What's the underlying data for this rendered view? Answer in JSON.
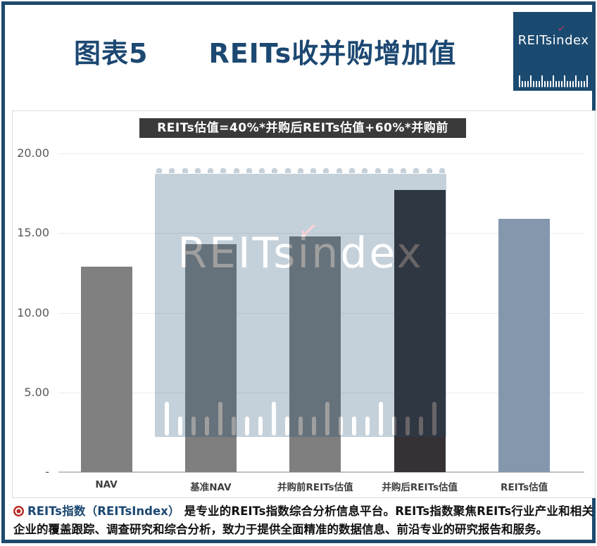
{
  "header": {
    "title_prefix": "图表5",
    "title_main": "REITs收并购增加值",
    "logo_text": "REITsindex"
  },
  "formula_banner": "REITs估值=40%*并购后REITs估值+60%*并购前REITs估值",
  "chart_data": {
    "type": "bar",
    "title": "REITs收并购增加值",
    "categories": [
      "NAV",
      "基准NAV",
      "并购前REITs估值",
      "并购后REITs估值",
      "REITs估值"
    ],
    "values": [
      12.9,
      14.3,
      14.8,
      17.7,
      15.9
    ],
    "bar_colors": [
      "#808080",
      "#7f7f7f",
      "#7f7f7f",
      "#363134",
      "#8497ad"
    ],
    "ylim": [
      0,
      20
    ],
    "ytick_labels": [
      "20.00",
      "15.00",
      "10.00",
      "5.00",
      "-"
    ],
    "ytick_values": [
      20,
      15,
      10,
      5,
      0
    ],
    "grid": true,
    "legend": "none",
    "annotation": "REITs估值=40%*并购后REITs估值+60%*并购前REITs估值",
    "watermark_text": "REITsindex"
  },
  "watermark": {
    "text": "REITsindex"
  },
  "footer": {
    "brand": "REITs指数（REITsIndex）",
    "text": "是专业的REITs指数综合分析信息平台。REITs指数聚焦REITs行业产业和相关企业的覆盖跟踪、调查研究和综合分析，致力于提供全面精准的数据信息、前沿专业的研究报告和服务。"
  },
  "colors": {
    "frame_navy": "#1d4a6e",
    "title_navy": "#1c4872",
    "logo_navy": "#1b4a70",
    "formula_bg": "#3a3a3a",
    "accent_pink": "#d6336c",
    "footer_icon_red": "#b92b27"
  }
}
